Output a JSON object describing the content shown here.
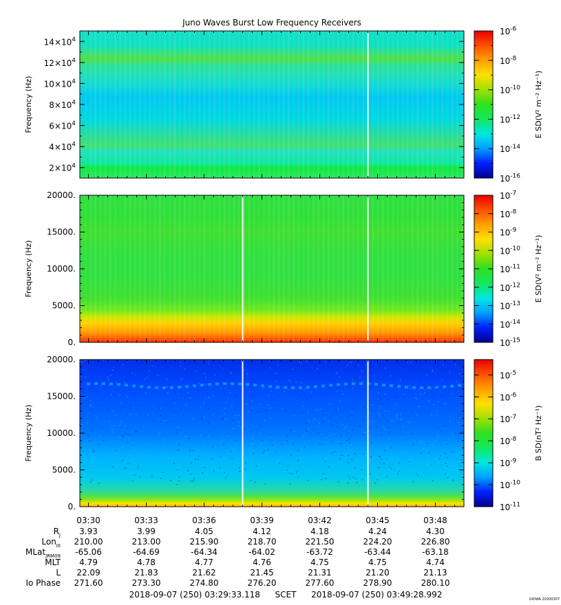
{
  "title": "Juno Waves Burst Low Frequency Receivers",
  "credit": "UIOWA 20200307",
  "colormap": [
    "#00008f",
    "#0020ff",
    "#00a0ff",
    "#00e8e0",
    "#10e860",
    "#30e020",
    "#a0e000",
    "#ffe000",
    "#ffa000",
    "#ff5000",
    "#e80000"
  ],
  "time_ticks": [
    "03:30",
    "03:33",
    "03:36",
    "03:39",
    "03:42",
    "03:45",
    "03:48"
  ],
  "time_range_label": {
    "start": "2018-09-07 (250) 03:29:33.118",
    "scet": "SCET",
    "end": "2018-09-07 (250) 03:49:28.992"
  },
  "ephemeris": [
    {
      "label": "R",
      "sub": "J",
      "values": [
        "3.93",
        "3.99",
        "4.05",
        "4.12",
        "4.18",
        "4.24",
        "4.30"
      ]
    },
    {
      "label": "Lon",
      "sub": "III",
      "values": [
        "210.00",
        "213.00",
        "215.90",
        "218.70",
        "221.50",
        "224.20",
        "226.80"
      ]
    },
    {
      "label": "MLat",
      "sub": "JRM09",
      "values": [
        "-65.06",
        "-64.69",
        "-64.34",
        "-64.02",
        "-63.72",
        "-63.44",
        "-63.18"
      ]
    },
    {
      "label": "MLT",
      "sub": "",
      "values": [
        "4.79",
        "4.78",
        "4.77",
        "4.76",
        "4.75",
        "4.75",
        "4.74"
      ]
    },
    {
      "label": "L",
      "sub": "",
      "values": [
        "22.09",
        "21.83",
        "21.62",
        "21.45",
        "21.31",
        "21.20",
        "21.13"
      ]
    },
    {
      "label": "Io Phase",
      "sub": "",
      "values": [
        "271.60",
        "273.30",
        "274.80",
        "276.20",
        "277.60",
        "278.90",
        "280.10"
      ]
    }
  ],
  "chart_data": [
    {
      "type": "heatmap",
      "ylabel": "Frequency (Hz)",
      "ylim": [
        10000,
        150000
      ],
      "y_ticks": [
        {
          "v": 20000,
          "m": "2",
          "e": "4"
        },
        {
          "v": 40000,
          "m": "4",
          "e": "4"
        },
        {
          "v": 60000,
          "m": "6",
          "e": "4"
        },
        {
          "v": 80000,
          "m": "8",
          "e": "4"
        },
        {
          "v": 100000,
          "m": "10",
          "e": "4"
        },
        {
          "v": 120000,
          "m": "12",
          "e": "4"
        },
        {
          "v": 140000,
          "m": "14",
          "e": "4"
        }
      ],
      "colorbar_label": "E SD(V² m⁻² Hz⁻¹)",
      "colorbar_ticks": [
        "-6",
        "-8",
        "-10",
        "-12",
        "-14",
        "-16"
      ],
      "colorbar_range": [
        -16,
        -6
      ],
      "gaps_hhmm": [
        "03:44:30"
      ]
    },
    {
      "type": "heatmap",
      "ylabel": "Frequency (Hz)",
      "ylim": [
        0,
        20000
      ],
      "y_ticks": [
        "0.",
        "5000.",
        "10000.",
        "15000.",
        "20000."
      ],
      "colorbar_label": "E SD(V² m⁻² Hz⁻¹)",
      "colorbar_ticks": [
        "-7",
        "-8",
        "-9",
        "-10",
        "-11",
        "-12",
        "-13",
        "-14",
        "-15"
      ],
      "colorbar_range": [
        -15,
        -7
      ],
      "gaps_hhmm": [
        "03:38:00",
        "03:44:30"
      ]
    },
    {
      "type": "heatmap",
      "ylabel": "Frequency (Hz)",
      "ylim": [
        0,
        20000
      ],
      "y_ticks": [
        "0.",
        "5000.",
        "10000.",
        "15000.",
        "20000."
      ],
      "colorbar_label": "B SD(nT² Hz⁻¹)",
      "colorbar_ticks": [
        "-5",
        "-6",
        "-7",
        "-8",
        "-9",
        "-10",
        "-11"
      ],
      "colorbar_range": [
        -11,
        -4.3
      ],
      "gaps_hhmm": [
        "03:38:00",
        "03:44:30"
      ]
    }
  ]
}
